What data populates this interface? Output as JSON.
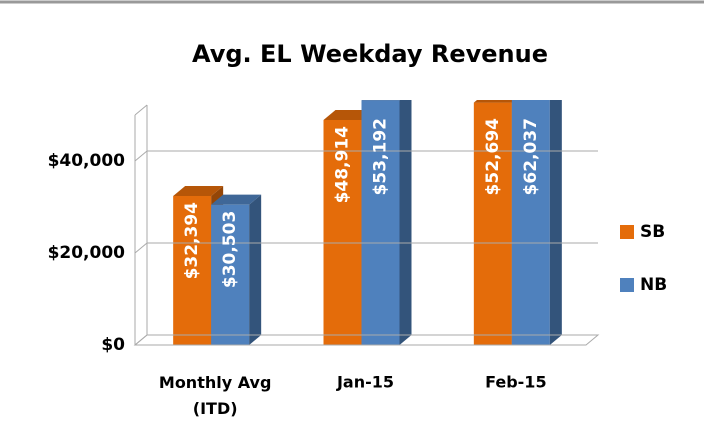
{
  "chart_data": {
    "type": "bar",
    "title": "Avg. EL Weekday Revenue",
    "categories": [
      "Monthly Avg (ITD)",
      "Jan-15",
      "Feb-15"
    ],
    "series": [
      {
        "name": "SB",
        "color": "#e46c0a",
        "values": [
          32394,
          48914,
          52694
        ],
        "value_labels": [
          "$32,394",
          "$48,914",
          "$52,694"
        ]
      },
      {
        "name": "NB",
        "color": "#4f81bd",
        "values": [
          30503,
          53192,
          62037
        ],
        "value_labels": [
          "$30,503",
          "$53,192",
          "$62,037"
        ]
      }
    ],
    "ylim": [
      0,
      50000
    ],
    "yticks": [
      {
        "value": 0,
        "label": "$0"
      },
      {
        "value": 20000,
        "label": "$20,000"
      },
      {
        "value": 40000,
        "label": "$40,000"
      }
    ],
    "grid": true,
    "legend": "right"
  }
}
